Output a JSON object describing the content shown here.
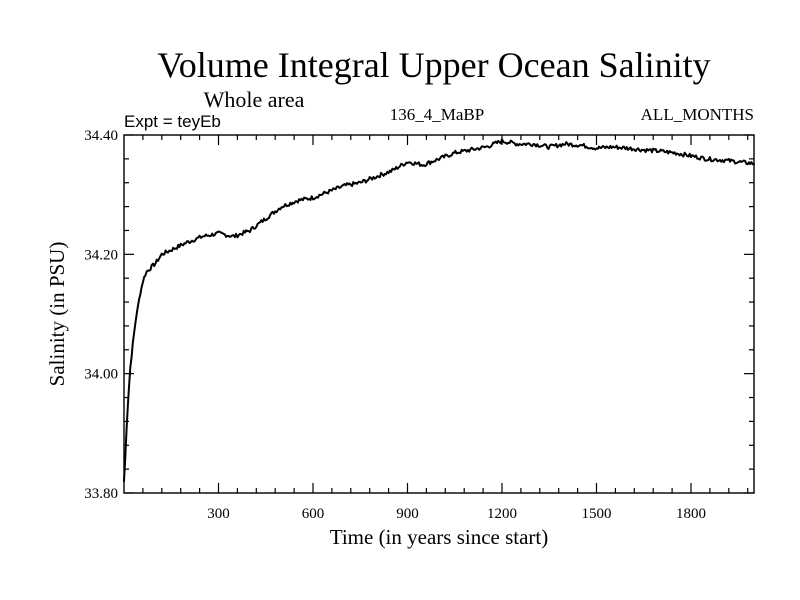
{
  "chart_data": {
    "type": "line",
    "title": "Volume Integral Upper Ocean Salinity",
    "subtitle": "Whole area",
    "left_label": "Expt = teyEb",
    "center_label": "136_4_MaBP",
    "right_label": "ALL_MONTHS",
    "xlabel": "Time (in years since start)",
    "ylabel": "Salinity (in PSU)",
    "xlim": [
      0,
      2000
    ],
    "ylim": [
      33.8,
      34.4
    ],
    "x_ticks": [
      300,
      600,
      900,
      1200,
      1500,
      1800
    ],
    "x_tick_labels": [
      "300",
      "600",
      "900",
      "1200",
      "1500",
      "1800"
    ],
    "y_ticks": [
      33.8,
      34.0,
      34.2,
      34.4
    ],
    "y_tick_labels": [
      "33.80",
      "34.00",
      "34.20",
      "34.40"
    ],
    "series": [
      {
        "name": "Salinity",
        "x": [
          0,
          5,
          10,
          15,
          20,
          30,
          40,
          50,
          60,
          70,
          80,
          90,
          100,
          120,
          140,
          160,
          180,
          200,
          250,
          300,
          350,
          400,
          450,
          500,
          550,
          600,
          650,
          700,
          750,
          800,
          850,
          900,
          950,
          1000,
          1050,
          1100,
          1150,
          1200,
          1250,
          1300,
          1350,
          1400,
          1450,
          1500,
          1550,
          1600,
          1650,
          1700,
          1750,
          1800,
          1850,
          1900,
          1950,
          2000
        ],
        "y": [
          33.82,
          33.87,
          33.93,
          33.97,
          34.01,
          34.06,
          34.1,
          34.13,
          34.155,
          34.17,
          34.175,
          34.18,
          34.185,
          34.2,
          34.205,
          34.21,
          34.215,
          34.22,
          34.23,
          34.235,
          34.23,
          34.24,
          34.26,
          34.28,
          34.29,
          34.295,
          34.305,
          34.315,
          34.32,
          34.33,
          34.34,
          34.355,
          34.35,
          34.36,
          34.37,
          34.375,
          34.38,
          34.39,
          34.385,
          34.385,
          34.38,
          34.385,
          34.383,
          34.378,
          34.38,
          34.378,
          34.375,
          34.373,
          34.37,
          34.365,
          34.36,
          34.358,
          34.355,
          34.352
        ]
      }
    ]
  }
}
